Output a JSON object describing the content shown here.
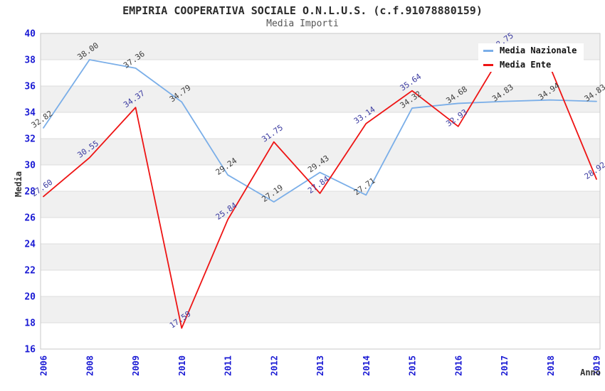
{
  "header": {
    "title": "EMPIRIA COOPERATIVA SOCIALE O.N.L.U.S. (c.f.91078880159)",
    "subtitle": "Media Importi"
  },
  "chart_data": {
    "type": "line",
    "title": "EMPIRIA COOPERATIVA SOCIALE O.N.L.U.S. (c.f.91078880159)",
    "subtitle": "Media Importi",
    "xlabel": "Anno",
    "ylabel": "Media",
    "categories": [
      "2006",
      "2008",
      "2009",
      "2010",
      "2011",
      "2012",
      "2013",
      "2014",
      "2015",
      "2016",
      "2017",
      "2018",
      "2019"
    ],
    "series": [
      {
        "name": "Media Nazionale",
        "color": "#7aaee8",
        "label_color": "#3d3d3d",
        "values": [
          32.82,
          38.0,
          37.36,
          34.79,
          29.24,
          27.19,
          29.43,
          27.71,
          34.32,
          34.68,
          34.83,
          34.94,
          34.83
        ],
        "labels": [
          "32.82",
          "38.00",
          "37.36",
          "34.79",
          "29.24",
          "27.19",
          "29.43",
          "27.71",
          "34.32",
          "34.68",
          "34.83",
          "34.94",
          "34.83"
        ]
      },
      {
        "name": "Media Ente",
        "color": "#ee1414",
        "label_color": "#3a3aa0",
        "values": [
          27.6,
          30.55,
          34.37,
          17.59,
          25.84,
          31.75,
          27.84,
          33.14,
          35.64,
          32.93,
          38.75,
          37.4,
          28.92
        ],
        "labels": [
          "27.60",
          "30.55",
          "34.37",
          "17.59",
          "25.84",
          "31.75",
          "27.84",
          "33.14",
          "35.64",
          "32.93",
          "38.75",
          "",
          "28.92"
        ]
      }
    ],
    "ylim": [
      16,
      40
    ],
    "yticks": [
      40,
      38,
      36,
      34,
      32,
      30,
      28,
      26,
      24,
      22,
      20,
      18,
      16
    ],
    "grid": "horizontal-alternating-bands",
    "legend_position": "top-right",
    "data_label_rotation_deg": -35,
    "x_tick_rotation_deg": -90
  },
  "colors": {
    "band_gray": "#f0f0f0",
    "band_white": "#ffffff",
    "gridline": "#dcdcdc",
    "plot_border": "#c8c8c8",
    "axis_tick_label": "#1a1ad4",
    "axis_title": "#333333",
    "title_text": "#2b2b2b",
    "subtitle_text": "#555555",
    "legend_bg": "#ffffff",
    "legend_text": "#111111"
  }
}
